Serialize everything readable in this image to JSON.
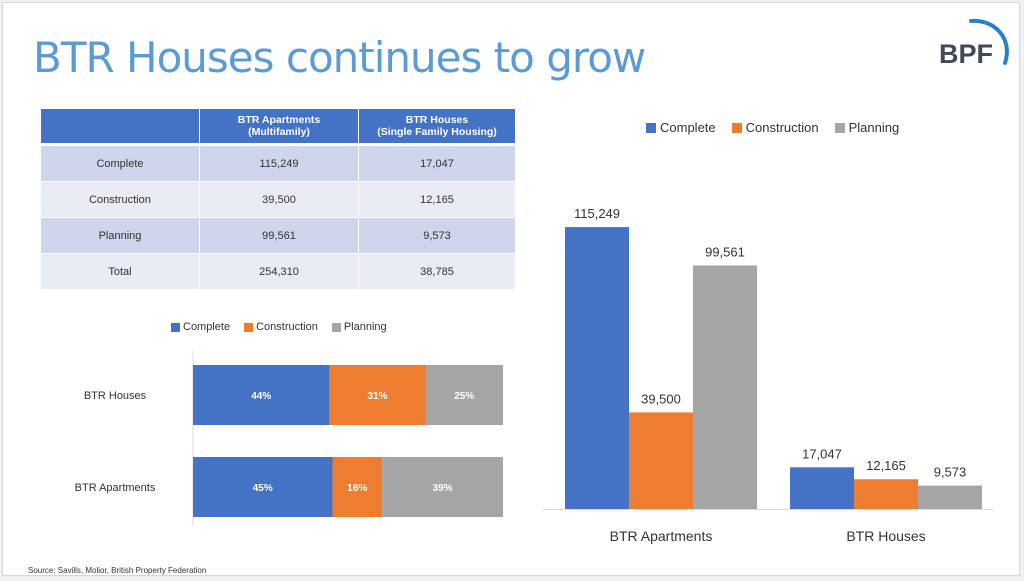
{
  "slide": {
    "title": "BTR Houses continues to grow",
    "logo_text": "BPF",
    "source": "Source: Savills, Molior, British Property Federation"
  },
  "colors": {
    "title": "#5b9bd5",
    "complete": "#4472c4",
    "construction": "#ed7d31",
    "planning": "#a5a5a5",
    "table_header": "#4472c4"
  },
  "table": {
    "headers": [
      "",
      "BTR Apartments (Multifamily)",
      "BTR Houses (Single Family Housing)"
    ],
    "header_lines": [
      [
        "BTR Apartments",
        "(Multifamily)"
      ],
      [
        "BTR Houses",
        "(Single Family Housing)"
      ]
    ],
    "rows": [
      {
        "label": "Complete",
        "apartments": "115,249",
        "houses": "17,047"
      },
      {
        "label": "Construction",
        "apartments": "39,500",
        "houses": "12,165"
      },
      {
        "label": "Planning",
        "apartments": "99,561",
        "houses": "9,573"
      },
      {
        "label": "Total",
        "apartments": "254,310",
        "houses": "38,785"
      }
    ]
  },
  "chart_data": [
    {
      "type": "bar",
      "orientation": "horizontal",
      "stacked": "percent",
      "title": "",
      "categories": [
        "BTR Houses",
        "BTR Apartments"
      ],
      "series": [
        {
          "name": "Complete",
          "values": [
            44,
            45
          ],
          "labels": [
            "44%",
            "45%"
          ]
        },
        {
          "name": "Construction",
          "values": [
            31,
            16
          ],
          "labels": [
            "31%",
            "16%"
          ]
        },
        {
          "name": "Planning",
          "values": [
            25,
            39
          ],
          "labels": [
            "25%",
            "39%"
          ]
        }
      ],
      "xlim": [
        0,
        100
      ],
      "legend": "top",
      "grid": false
    },
    {
      "type": "bar",
      "orientation": "vertical",
      "title": "",
      "categories": [
        "BTR Apartments",
        "BTR Houses"
      ],
      "series": [
        {
          "name": "Complete",
          "values": [
            115249,
            17047
          ],
          "labels": [
            "115,249",
            "17,047"
          ]
        },
        {
          "name": "Construction",
          "values": [
            39500,
            12165
          ],
          "labels": [
            "39,500",
            "12,165"
          ]
        },
        {
          "name": "Planning",
          "values": [
            99561,
            9573
          ],
          "labels": [
            "99,561",
            "9,573"
          ]
        }
      ],
      "ylim": [
        0,
        130000
      ],
      "legend": "top",
      "grid": false
    }
  ]
}
